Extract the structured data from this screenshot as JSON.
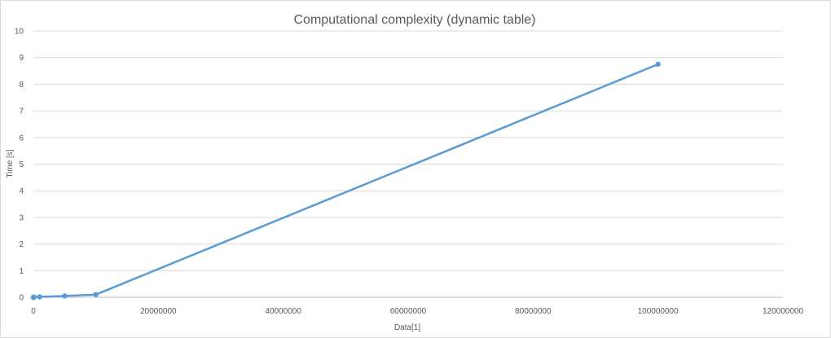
{
  "chart_data": {
    "type": "line",
    "title": "Computational complexity (dynamic table)",
    "xlabel": "Data[1]",
    "ylabel": "Time [s]",
    "xlim": [
      0,
      120000000
    ],
    "ylim": [
      0,
      10
    ],
    "x_ticks": [
      0,
      20000000,
      40000000,
      60000000,
      80000000,
      100000000,
      120000000
    ],
    "y_ticks": [
      0,
      1,
      2,
      3,
      4,
      5,
      6,
      7,
      8,
      9,
      10
    ],
    "x_tick_labels": [
      "0",
      "20000000",
      "40000000",
      "60000000",
      "80000000",
      "100000000",
      "120000000"
    ],
    "y_tick_labels": [
      "0",
      "1",
      "2",
      "3",
      "4",
      "5",
      "6",
      "7",
      "8",
      "9",
      "10"
    ],
    "grid": true,
    "legend": false,
    "series": [
      {
        "color": "#5b9bd5",
        "x": [
          10,
          100,
          1000,
          10000,
          100000,
          1000000,
          5000000,
          10000000,
          100000000
        ],
        "y": [
          0,
          0,
          0,
          0,
          0.002,
          0.015,
          0.05,
          0.1,
          8.75
        ]
      }
    ]
  }
}
